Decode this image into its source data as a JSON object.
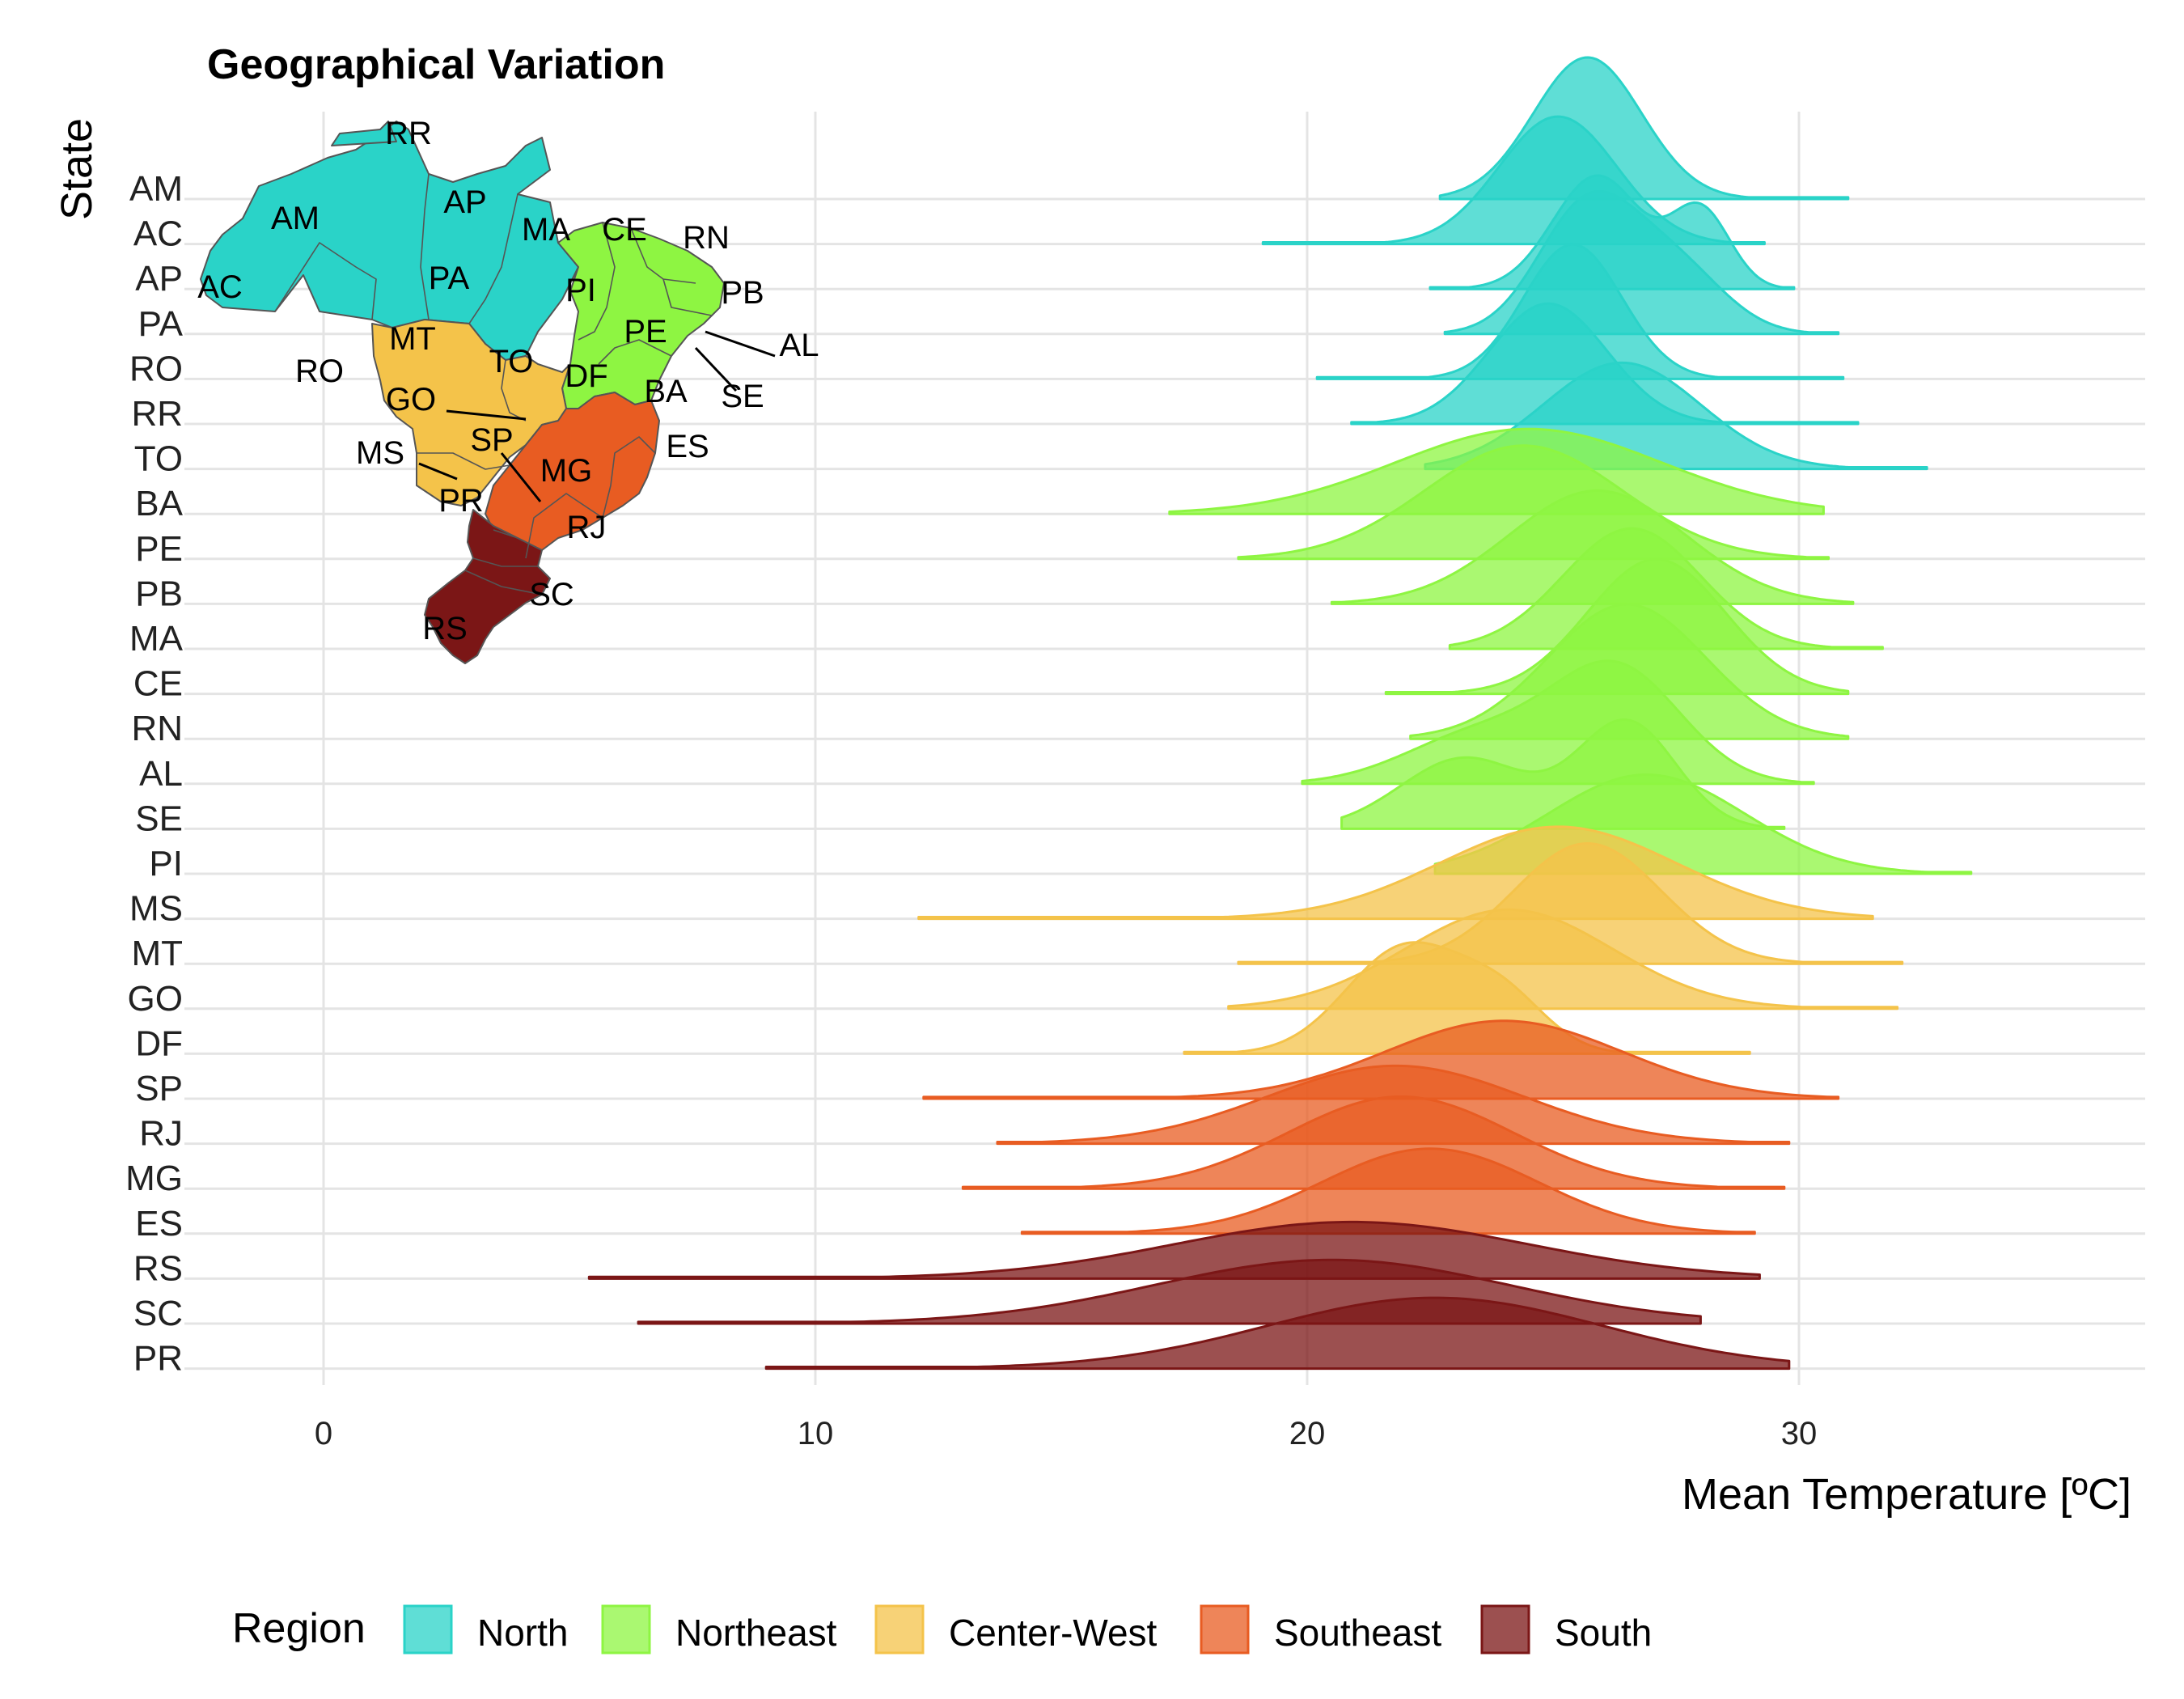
{
  "title": "Geographical Variation",
  "chart_data": {
    "type": "ridgeline",
    "title": "Geographical Variation",
    "xlabel": "Mean Temperature [ºC]",
    "ylabel": "State",
    "xlim": [
      -2.5,
      37
    ],
    "x_ticks": [
      0,
      10,
      20,
      30
    ],
    "grid": true,
    "legend": {
      "title": "Region",
      "position": "bottom",
      "items": [
        {
          "name": "North",
          "color": "#2ad3c8"
        },
        {
          "name": "Northeast",
          "color": "#8ef542"
        },
        {
          "name": "Center-West",
          "color": "#f4c34a"
        },
        {
          "name": "Southeast",
          "color": "#e85c22"
        },
        {
          "name": "South",
          "color": "#7b1616"
        }
      ]
    },
    "series": [
      {
        "state": "AM",
        "region": "North",
        "range": [
          22.7,
          31.0
        ],
        "peaks": [
          [
            25.7,
            1.0,
            1.1
          ]
        ]
      },
      {
        "state": "AC",
        "region": "North",
        "range": [
          19.1,
          29.3
        ],
        "peaks": [
          [
            25.1,
            0.9,
            1.2
          ]
        ]
      },
      {
        "state": "AP",
        "region": "North",
        "range": [
          22.5,
          29.9
        ],
        "peaks": [
          [
            25.9,
            0.8,
            0.9
          ],
          [
            28.0,
            0.55,
            0.6
          ]
        ]
      },
      {
        "state": "PA",
        "region": "North",
        "range": [
          22.8,
          30.8
        ],
        "peaks": [
          [
            25.7,
            0.9,
            1.0
          ],
          [
            27.5,
            0.45,
            1.0
          ]
        ]
      },
      {
        "state": "RO",
        "region": "North",
        "range": [
          20.2,
          30.9
        ],
        "peaks": [
          [
            25.4,
            0.95,
            1.0
          ]
        ]
      },
      {
        "state": "RR",
        "region": "North",
        "range": [
          20.9,
          31.2
        ],
        "peaks": [
          [
            24.9,
            0.85,
            1.2
          ]
        ]
      },
      {
        "state": "TO",
        "region": "North",
        "range": [
          22.4,
          32.6
        ],
        "peaks": [
          [
            26.4,
            0.75,
            1.6
          ]
        ]
      },
      {
        "state": "BA",
        "region": "Northeast",
        "range": [
          17.2,
          30.5
        ],
        "peaks": [
          [
            24.5,
            0.6,
            2.7
          ]
        ]
      },
      {
        "state": "PE",
        "region": "Northeast",
        "range": [
          18.6,
          30.6
        ],
        "peaks": [
          [
            24.4,
            0.8,
            2.0
          ]
        ]
      },
      {
        "state": "PB",
        "region": "Northeast",
        "range": [
          20.5,
          31.1
        ],
        "peaks": [
          [
            25.9,
            0.8,
            1.8
          ]
        ]
      },
      {
        "state": "MA",
        "region": "Northeast",
        "range": [
          22.9,
          31.7
        ],
        "peaks": [
          [
            26.6,
            0.85,
            1.4
          ]
        ]
      },
      {
        "state": "CE",
        "region": "Northeast",
        "range": [
          21.6,
          31.0
        ],
        "peaks": [
          [
            27.1,
            0.95,
            1.4
          ]
        ]
      },
      {
        "state": "RN",
        "region": "Northeast",
        "range": [
          22.1,
          31.0
        ],
        "peaks": [
          [
            26.5,
            0.95,
            1.6
          ]
        ]
      },
      {
        "state": "AL",
        "region": "Northeast",
        "range": [
          19.9,
          30.3
        ],
        "peaks": [
          [
            26.3,
            0.8,
            1.3
          ],
          [
            23.5,
            0.35,
            1.5
          ]
        ]
      },
      {
        "state": "SE",
        "region": "Northeast",
        "range": [
          20.7,
          29.7
        ],
        "peaks": [
          [
            26.5,
            0.75,
            1.0
          ],
          [
            23.2,
            0.5,
            1.3
          ]
        ]
      },
      {
        "state": "PI",
        "region": "Northeast",
        "range": [
          22.6,
          33.5
        ],
        "peaks": [
          [
            26.9,
            0.7,
            2.0
          ]
        ]
      },
      {
        "state": "MS",
        "region": "Center-West",
        "range": [
          12.1,
          31.5
        ],
        "peaks": [
          [
            25.1,
            0.65,
            2.4
          ]
        ]
      },
      {
        "state": "MT",
        "region": "Center-West",
        "range": [
          18.6,
          32.1
        ],
        "peaks": [
          [
            25.7,
            0.85,
            1.5
          ]
        ]
      },
      {
        "state": "GO",
        "region": "Center-West",
        "range": [
          18.4,
          32.0
        ],
        "peaks": [
          [
            24.1,
            0.7,
            2.1
          ]
        ]
      },
      {
        "state": "DF",
        "region": "Center-West",
        "range": [
          17.5,
          29.0
        ],
        "peaks": [
          [
            22.0,
            0.75,
            1.2
          ],
          [
            24.0,
            0.35,
            0.9
          ]
        ]
      },
      {
        "state": "SP",
        "region": "Southeast",
        "range": [
          12.2,
          30.8
        ],
        "peaks": [
          [
            24.0,
            0.55,
            2.4
          ]
        ]
      },
      {
        "state": "RJ",
        "region": "Southeast",
        "range": [
          13.7,
          29.8
        ],
        "peaks": [
          [
            21.8,
            0.55,
            2.6
          ]
        ]
      },
      {
        "state": "MG",
        "region": "Southeast",
        "range": [
          13.0,
          29.7
        ],
        "peaks": [
          [
            21.9,
            0.65,
            2.3
          ]
        ]
      },
      {
        "state": "ES",
        "region": "Southeast",
        "range": [
          14.2,
          29.1
        ],
        "peaks": [
          [
            22.5,
            0.6,
            2.2
          ]
        ]
      },
      {
        "state": "RS",
        "region": "South",
        "range": [
          5.4,
          29.2
        ],
        "peaks": [
          [
            20.9,
            0.4,
            3.6
          ]
        ]
      },
      {
        "state": "SC",
        "region": "South",
        "range": [
          6.4,
          28.0
        ],
        "peaks": [
          [
            20.5,
            0.45,
            3.6
          ]
        ]
      },
      {
        "state": "PR",
        "region": "South",
        "range": [
          9.0,
          29.8
        ],
        "peaks": [
          [
            22.6,
            0.5,
            3.4
          ]
        ]
      }
    ],
    "inset_map": {
      "labels": [
        "RR",
        "AM",
        "AP",
        "MA",
        "CE",
        "RN",
        "PB",
        "AC",
        "PA",
        "PI",
        "PE",
        "AL",
        "SE",
        "MT",
        "TO",
        "RO",
        "DF",
        "BA",
        "GO",
        "SP",
        "MS",
        "MG",
        "ES",
        "PR",
        "RJ",
        "SC",
        "RS"
      ]
    }
  }
}
